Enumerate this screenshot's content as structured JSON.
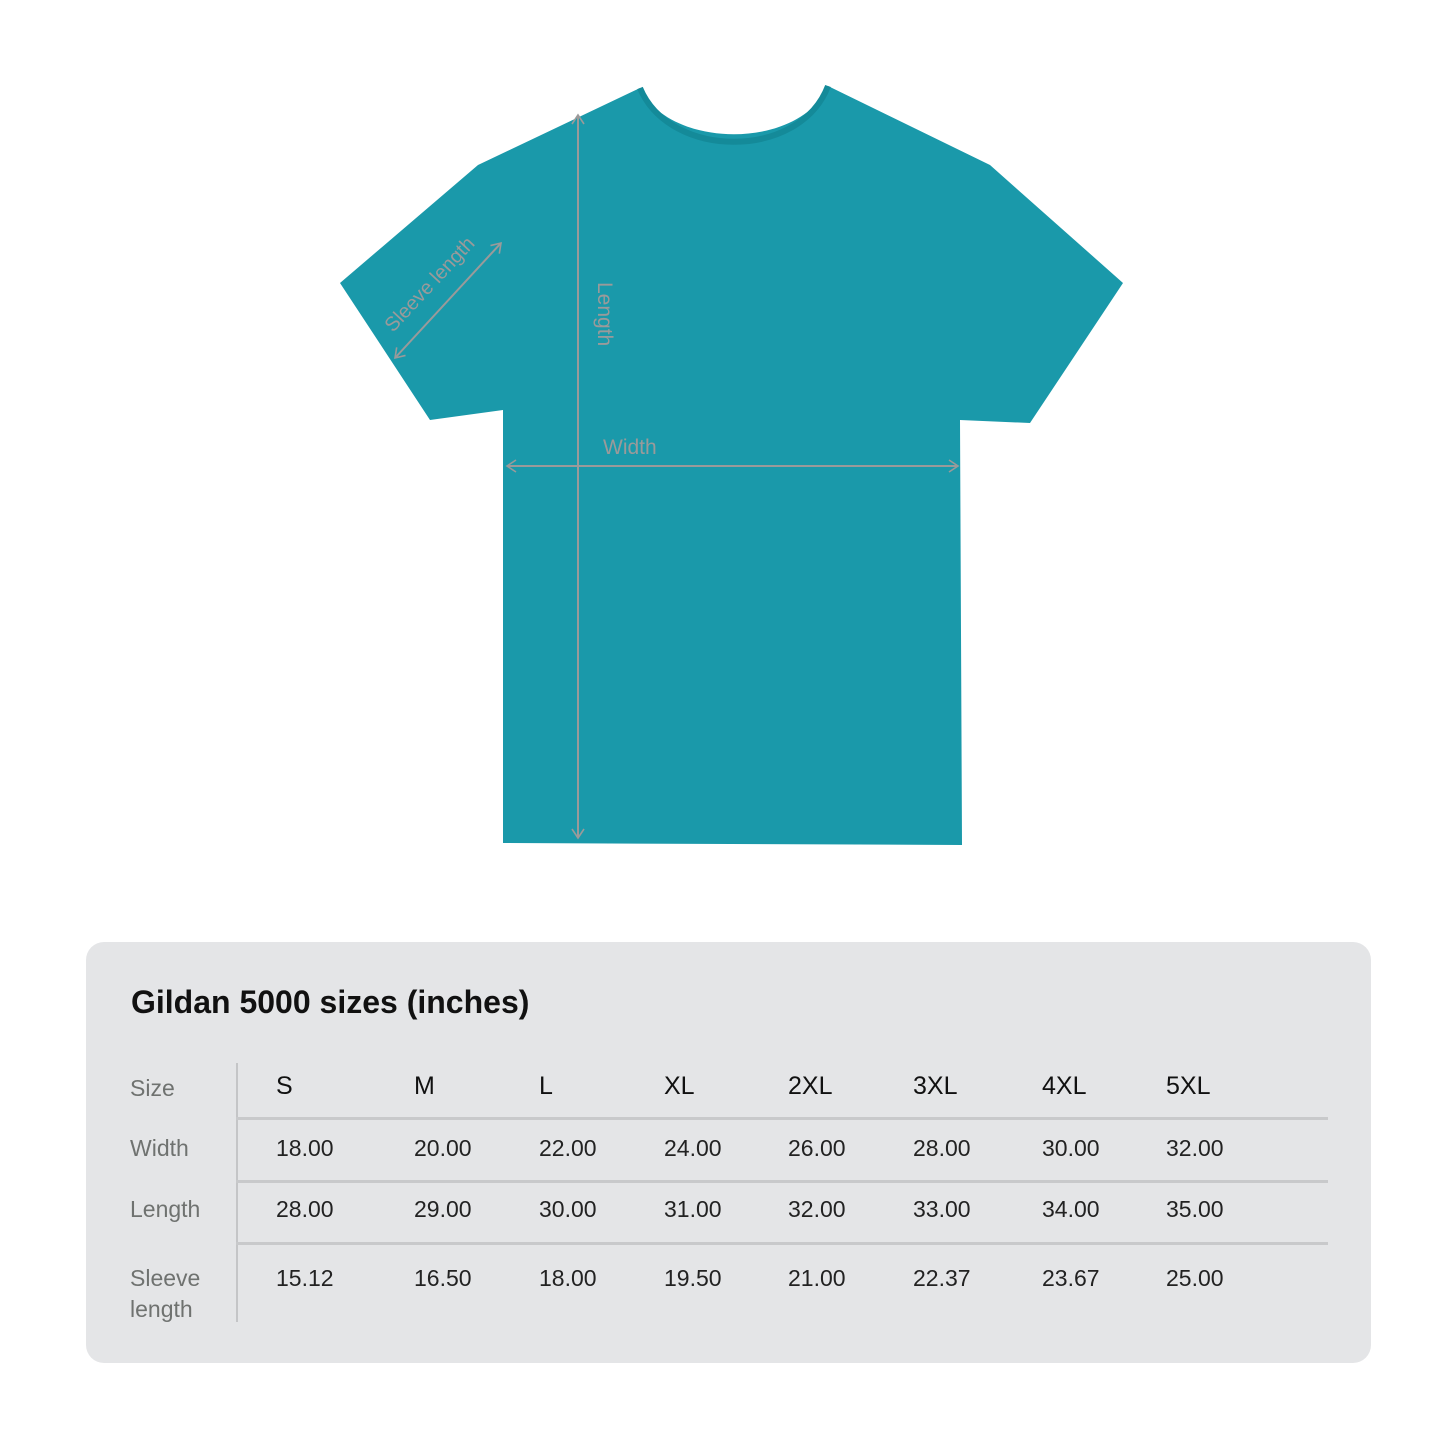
{
  "diagram": {
    "shirt_color": "#1a99aa",
    "labels": {
      "sleeve": "Sleeve length",
      "length": "Length",
      "width": "Width"
    }
  },
  "table": {
    "title": "Gildan 5000 sizes (inches)",
    "header_label": "Size",
    "sizes": [
      "S",
      "M",
      "L",
      "XL",
      "2XL",
      "3XL",
      "4XL",
      "5XL"
    ],
    "rows": [
      {
        "label": "Width",
        "values": [
          "18.00",
          "20.00",
          "22.00",
          "24.00",
          "26.00",
          "28.00",
          "30.00",
          "32.00"
        ]
      },
      {
        "label": "Length",
        "values": [
          "28.00",
          "29.00",
          "30.00",
          "31.00",
          "32.00",
          "33.00",
          "34.00",
          "35.00"
        ]
      },
      {
        "label": "Sleeve length",
        "values": [
          "15.12",
          "16.50",
          "18.00",
          "19.50",
          "21.00",
          "22.37",
          "23.67",
          "25.00"
        ]
      }
    ]
  }
}
